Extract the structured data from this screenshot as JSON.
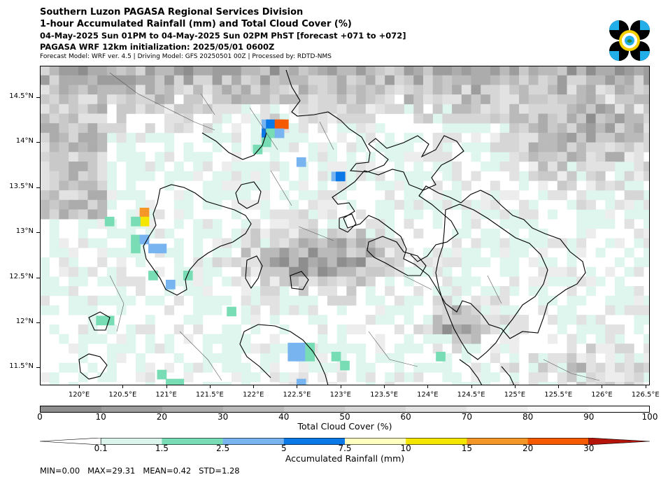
{
  "header": {
    "title": "Southern Luzon PAGASA Regional Services Division",
    "subtitle": "1-hour Accumulated Rainfall (mm) and Total Cloud Cover (%)",
    "period": "04-May-2025 Sun 01PM to 04-May-2025 Sun 02PM PhST [forecast +071 to +072]",
    "init": "PAGASA WRF 12km initialization: 2025/05/01 0600Z",
    "model": "Forecast Model: WRF ver. 4.5 | Driving Model: GFS 20250501 00Z | Processed by: RDTD-NMS"
  },
  "map": {
    "lon_range": [
      119.55,
      126.55
    ],
    "lat_range": [
      11.3,
      14.85
    ],
    "lat_ticks": [
      "14.5°N",
      "14°N",
      "13.5°N",
      "13°N",
      "12.5°N",
      "12°N",
      "11.5°N"
    ],
    "lat_values": [
      14.5,
      14.0,
      13.5,
      13.0,
      12.5,
      12.0,
      11.5
    ],
    "lon_ticks": [
      "120°E",
      "120.5°E",
      "121°E",
      "121.5°E",
      "122°E",
      "122.5°E",
      "123°E",
      "123.5°E",
      "124°E",
      "124.5°E",
      "125°E",
      "125.5°E",
      "126°E",
      "126.5°E"
    ],
    "lon_values": [
      120.0,
      120.5,
      121.0,
      121.5,
      122.0,
      122.5,
      123.0,
      123.5,
      124.0,
      124.5,
      125.0,
      125.5,
      126.0,
      126.5
    ],
    "rain_cells": [
      {
        "lon": 122.15,
        "lat": 14.2,
        "mm": 3.0
      },
      {
        "lon": 122.2,
        "lat": 14.2,
        "mm": 6.0
      },
      {
        "lon": 122.3,
        "lat": 14.2,
        "mm": 25.0
      },
      {
        "lon": 122.35,
        "lat": 14.2,
        "mm": 25.0
      },
      {
        "lon": 122.15,
        "lat": 14.1,
        "mm": 6.0
      },
      {
        "lon": 122.2,
        "lat": 14.1,
        "mm": 1.8
      },
      {
        "lon": 122.3,
        "lat": 14.1,
        "mm": 3.0
      },
      {
        "lon": 122.15,
        "lat": 14.0,
        "mm": 1.5
      },
      {
        "lon": 122.55,
        "lat": 13.78,
        "mm": 3.0
      },
      {
        "lon": 122.95,
        "lat": 13.62,
        "mm": 3.0
      },
      {
        "lon": 123.0,
        "lat": 13.62,
        "mm": 6.0
      },
      {
        "lon": 120.75,
        "lat": 13.22,
        "mm": 18.0
      },
      {
        "lon": 120.75,
        "lat": 13.12,
        "mm": 12.0
      },
      {
        "lon": 120.65,
        "lat": 13.12,
        "mm": 1.8
      },
      {
        "lon": 120.35,
        "lat": 13.12,
        "mm": 1.8
      },
      {
        "lon": 120.65,
        "lat": 12.92,
        "mm": 1.8
      },
      {
        "lon": 120.75,
        "lat": 12.92,
        "mm": 3.0
      },
      {
        "lon": 120.85,
        "lat": 12.82,
        "mm": 3.0
      },
      {
        "lon": 120.95,
        "lat": 12.82,
        "mm": 3.0
      },
      {
        "lon": 120.65,
        "lat": 12.82,
        "mm": 1.8
      },
      {
        "lon": 121.05,
        "lat": 12.42,
        "mm": 3.0
      },
      {
        "lon": 121.25,
        "lat": 12.52,
        "mm": 1.8
      },
      {
        "lon": 122.45,
        "lat": 11.72,
        "mm": 3.0
      },
      {
        "lon": 122.55,
        "lat": 11.72,
        "mm": 3.0
      },
      {
        "lon": 122.45,
        "lat": 11.62,
        "mm": 3.0
      },
      {
        "lon": 122.55,
        "lat": 11.62,
        "mm": 3.0
      },
      {
        "lon": 122.65,
        "lat": 11.72,
        "mm": 1.8
      },
      {
        "lon": 122.65,
        "lat": 11.62,
        "mm": 1.8
      },
      {
        "lon": 122.95,
        "lat": 11.62,
        "mm": 1.8
      },
      {
        "lon": 123.05,
        "lat": 11.52,
        "mm": 1.8
      },
      {
        "lon": 120.95,
        "lat": 11.42,
        "mm": 1.8
      },
      {
        "lon": 121.05,
        "lat": 11.32,
        "mm": 1.8
      },
      {
        "lon": 121.15,
        "lat": 11.32,
        "mm": 1.8
      },
      {
        "lon": 120.25,
        "lat": 12.02,
        "mm": 1.8
      },
      {
        "lon": 120.35,
        "lat": 12.02,
        "mm": 1.8
      },
      {
        "lon": 122.05,
        "lat": 13.92,
        "mm": 1.8
      },
      {
        "lon": 124.15,
        "lat": 11.62,
        "mm": 1.8
      },
      {
        "lon": 120.85,
        "lat": 12.52,
        "mm": 1.8
      },
      {
        "lon": 122.55,
        "lat": 11.32,
        "mm": 3.0
      },
      {
        "lon": 121.75,
        "lat": 12.12,
        "mm": 1.8
      }
    ]
  },
  "cloud_colorbar": {
    "labels": [
      "0",
      "10",
      "20",
      "30",
      "40",
      "50",
      "60",
      "70",
      "80",
      "90",
      "100"
    ],
    "colors": [
      "#8e8e8e",
      "#9d9d9d",
      "#acacac",
      "#bababa",
      "#c9c9c9",
      "#d6d6d6",
      "#e2e2e2",
      "#ededed",
      "#f6f6f6",
      "#ffffff"
    ],
    "title": "Total Cloud Cover (%)"
  },
  "rain_colorbar": {
    "labels": [
      "0.1",
      "1.5",
      "2.5",
      "5",
      "7.5",
      "10",
      "15",
      "20",
      "30"
    ],
    "colors": [
      "#ffffff",
      "#dcf5ec",
      "#78dcb4",
      "#78b4f0",
      "#0a78e6",
      "#ffffc0",
      "#f5e600",
      "#f59628",
      "#f55a00",
      "#b4140a"
    ],
    "title": "Accumulated Rainfall (mm)"
  },
  "stats": {
    "text": "MIN=0.00   MAX=29.31   MEAN=0.42   STD=1.28"
  }
}
